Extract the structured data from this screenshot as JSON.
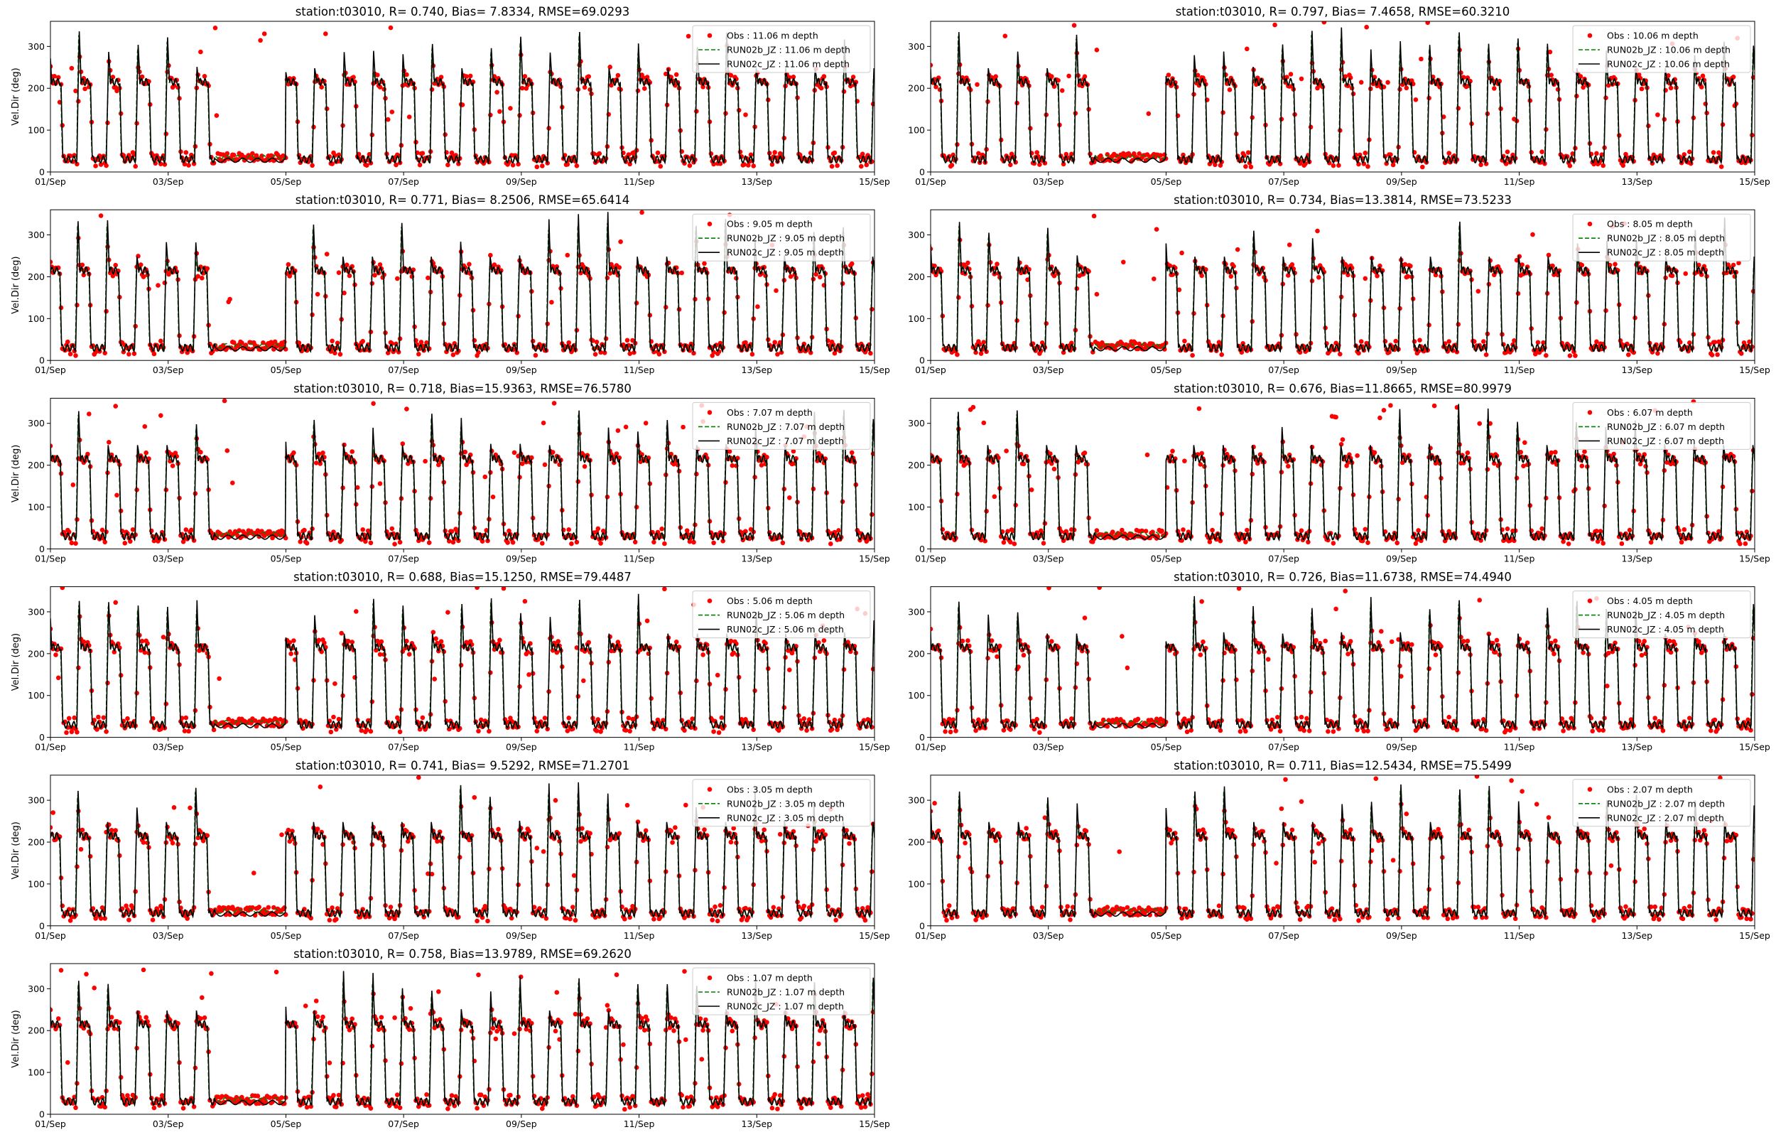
{
  "figure": {
    "colors": {
      "obs": "#ff0000",
      "run02b": "#008000",
      "run02c": "#000000"
    }
  },
  "chart_data": [
    {
      "type": "line",
      "title": "station:t03010, R= 0.740, Bias= 7.8334, RMSE=69.0293",
      "ylabel": "Vel.Dir (deg)",
      "xlabel": "",
      "ylim": [
        0,
        360
      ],
      "yticks": [
        0,
        100,
        200,
        300
      ],
      "xticks": [
        "01/Sep",
        "03/Sep",
        "05/Sep",
        "07/Sep",
        "09/Sep",
        "11/Sep",
        "13/Sep",
        "15/Sep"
      ],
      "x_range": [
        "01/Sep",
        "15/Sep"
      ],
      "legend_position": "top-right",
      "series": [
        {
          "name": "Obs : 11.06 m depth",
          "style": "red dots"
        },
        {
          "name": "RUN02b_JZ : 11.06 m depth",
          "style": "green dashed"
        },
        {
          "name": "RUN02c_JZ : 11.06 m depth",
          "style": "black solid"
        }
      ]
    },
    {
      "type": "line",
      "title": "station:t03010, R= 0.797, Bias= 7.4658, RMSE=60.3210",
      "ylabel": "",
      "xlabel": "",
      "ylim": [
        0,
        360
      ],
      "yticks": [
        0,
        100,
        200,
        300
      ],
      "xticks": [
        "01/Sep",
        "03/Sep",
        "05/Sep",
        "07/Sep",
        "09/Sep",
        "11/Sep",
        "13/Sep",
        "15/Sep"
      ],
      "x_range": [
        "01/Sep",
        "15/Sep"
      ],
      "legend_position": "top-right",
      "series": [
        {
          "name": "Obs : 10.06 m depth",
          "style": "red dots"
        },
        {
          "name": "RUN02b_JZ : 10.06 m depth",
          "style": "green dashed"
        },
        {
          "name": "RUN02c_JZ : 10.06 m depth",
          "style": "black solid"
        }
      ]
    },
    {
      "type": "line",
      "title": "station:t03010, R= 0.771, Bias= 8.2506, RMSE=65.6414",
      "ylabel": "Vel.Dir (deg)",
      "xlabel": "",
      "ylim": [
        0,
        360
      ],
      "yticks": [
        0,
        100,
        200,
        300
      ],
      "xticks": [
        "01/Sep",
        "03/Sep",
        "05/Sep",
        "07/Sep",
        "09/Sep",
        "11/Sep",
        "13/Sep",
        "15/Sep"
      ],
      "x_range": [
        "01/Sep",
        "15/Sep"
      ],
      "legend_position": "top-right",
      "series": [
        {
          "name": "Obs : 9.05 m depth",
          "style": "red dots"
        },
        {
          "name": "RUN02b_JZ : 9.05 m depth",
          "style": "green dashed"
        },
        {
          "name": "RUN02c_JZ : 9.05 m depth",
          "style": "black solid"
        }
      ]
    },
    {
      "type": "line",
      "title": "station:t03010, R= 0.734, Bias=13.3814, RMSE=73.5233",
      "ylabel": "",
      "xlabel": "",
      "ylim": [
        0,
        360
      ],
      "yticks": [
        0,
        100,
        200,
        300
      ],
      "xticks": [
        "01/Sep",
        "03/Sep",
        "05/Sep",
        "07/Sep",
        "09/Sep",
        "11/Sep",
        "13/Sep",
        "15/Sep"
      ],
      "x_range": [
        "01/Sep",
        "15/Sep"
      ],
      "legend_position": "top-right",
      "series": [
        {
          "name": "Obs : 8.05 m depth",
          "style": "red dots"
        },
        {
          "name": "RUN02b_JZ : 8.05 m depth",
          "style": "green dashed"
        },
        {
          "name": "RUN02c_JZ : 8.05 m depth",
          "style": "black solid"
        }
      ]
    },
    {
      "type": "line",
      "title": "station:t03010, R= 0.718, Bias=15.9363, RMSE=76.5780",
      "ylabel": "Vel.Dir (deg)",
      "xlabel": "",
      "ylim": [
        0,
        360
      ],
      "yticks": [
        0,
        100,
        200,
        300
      ],
      "xticks": [
        "01/Sep",
        "03/Sep",
        "05/Sep",
        "07/Sep",
        "09/Sep",
        "11/Sep",
        "13/Sep",
        "15/Sep"
      ],
      "x_range": [
        "01/Sep",
        "15/Sep"
      ],
      "legend_position": "top-right",
      "series": [
        {
          "name": "Obs : 7.07 m depth",
          "style": "red dots"
        },
        {
          "name": "RUN02b_JZ : 7.07 m depth",
          "style": "green dashed"
        },
        {
          "name": "RUN02c_JZ : 7.07 m depth",
          "style": "black solid"
        }
      ]
    },
    {
      "type": "line",
      "title": "station:t03010, R= 0.676, Bias=11.8665, RMSE=80.9979",
      "ylabel": "",
      "xlabel": "",
      "ylim": [
        0,
        360
      ],
      "yticks": [
        0,
        100,
        200,
        300
      ],
      "xticks": [
        "01/Sep",
        "03/Sep",
        "05/Sep",
        "07/Sep",
        "09/Sep",
        "11/Sep",
        "13/Sep",
        "15/Sep"
      ],
      "x_range": [
        "01/Sep",
        "15/Sep"
      ],
      "legend_position": "top-right",
      "series": [
        {
          "name": "Obs : 6.07 m depth",
          "style": "red dots"
        },
        {
          "name": "RUN02b_JZ : 6.07 m depth",
          "style": "green dashed"
        },
        {
          "name": "RUN02c_JZ : 6.07 m depth",
          "style": "black solid"
        }
      ]
    },
    {
      "type": "line",
      "title": "station:t03010, R= 0.688, Bias=15.1250, RMSE=79.4487",
      "ylabel": "Vel.Dir (deg)",
      "xlabel": "",
      "ylim": [
        0,
        360
      ],
      "yticks": [
        0,
        100,
        200,
        300
      ],
      "xticks": [
        "01/Sep",
        "03/Sep",
        "05/Sep",
        "07/Sep",
        "09/Sep",
        "11/Sep",
        "13/Sep",
        "15/Sep"
      ],
      "x_range": [
        "01/Sep",
        "15/Sep"
      ],
      "legend_position": "top-right",
      "series": [
        {
          "name": "Obs : 5.06 m depth",
          "style": "red dots"
        },
        {
          "name": "RUN02b_JZ : 5.06 m depth",
          "style": "green dashed"
        },
        {
          "name": "RUN02c_JZ : 5.06 m depth",
          "style": "black solid"
        }
      ]
    },
    {
      "type": "line",
      "title": "station:t03010, R= 0.726, Bias=11.6738, RMSE=74.4940",
      "ylabel": "",
      "xlabel": "",
      "ylim": [
        0,
        360
      ],
      "yticks": [
        0,
        100,
        200,
        300
      ],
      "xticks": [
        "01/Sep",
        "03/Sep",
        "05/Sep",
        "07/Sep",
        "09/Sep",
        "11/Sep",
        "13/Sep",
        "15/Sep"
      ],
      "x_range": [
        "01/Sep",
        "15/Sep"
      ],
      "legend_position": "top-right",
      "series": [
        {
          "name": "Obs : 4.05 m depth",
          "style": "red dots"
        },
        {
          "name": "RUN02b_JZ : 4.05 m depth",
          "style": "green dashed"
        },
        {
          "name": "RUN02c_JZ : 4.05 m depth",
          "style": "black solid"
        }
      ]
    },
    {
      "type": "line",
      "title": "station:t03010, R= 0.741, Bias= 9.5292, RMSE=71.2701",
      "ylabel": "Vel.Dir (deg)",
      "xlabel": "",
      "ylim": [
        0,
        360
      ],
      "yticks": [
        0,
        100,
        200,
        300
      ],
      "xticks": [
        "01/Sep",
        "03/Sep",
        "05/Sep",
        "07/Sep",
        "09/Sep",
        "11/Sep",
        "13/Sep",
        "15/Sep"
      ],
      "x_range": [
        "01/Sep",
        "15/Sep"
      ],
      "legend_position": "top-right",
      "series": [
        {
          "name": "Obs : 3.05 m depth",
          "style": "red dots"
        },
        {
          "name": "RUN02b_JZ : 3.05 m depth",
          "style": "green dashed"
        },
        {
          "name": "RUN02c_JZ : 3.05 m depth",
          "style": "black solid"
        }
      ]
    },
    {
      "type": "line",
      "title": "station:t03010, R= 0.711, Bias=12.5434, RMSE=75.5499",
      "ylabel": "",
      "xlabel": "",
      "ylim": [
        0,
        360
      ],
      "yticks": [
        0,
        100,
        200,
        300
      ],
      "xticks": [
        "01/Sep",
        "03/Sep",
        "05/Sep",
        "07/Sep",
        "09/Sep",
        "11/Sep",
        "13/Sep",
        "15/Sep"
      ],
      "x_range": [
        "01/Sep",
        "15/Sep"
      ],
      "legend_position": "top-right",
      "series": [
        {
          "name": "Obs : 2.07 m depth",
          "style": "red dots"
        },
        {
          "name": "RUN02b_JZ : 2.07 m depth",
          "style": "green dashed"
        },
        {
          "name": "RUN02c_JZ : 2.07 m depth",
          "style": "black solid"
        }
      ]
    },
    {
      "type": "line",
      "title": "station:t03010, R= 0.758, Bias=13.9789, RMSE=69.2620",
      "ylabel": "Vel.Dir (deg)",
      "xlabel": "",
      "ylim": [
        0,
        360
      ],
      "yticks": [
        0,
        100,
        200,
        300
      ],
      "xticks": [
        "01/Sep",
        "03/Sep",
        "05/Sep",
        "07/Sep",
        "09/Sep",
        "11/Sep",
        "13/Sep",
        "15/Sep"
      ],
      "x_range": [
        "01/Sep",
        "15/Sep"
      ],
      "legend_position": "top-right",
      "series": [
        {
          "name": "Obs : 1.07 m depth",
          "style": "red dots"
        },
        {
          "name": "RUN02b_JZ : 1.07 m depth",
          "style": "green dashed"
        },
        {
          "name": "RUN02c_JZ : 1.07 m depth",
          "style": "black solid"
        }
      ]
    }
  ]
}
